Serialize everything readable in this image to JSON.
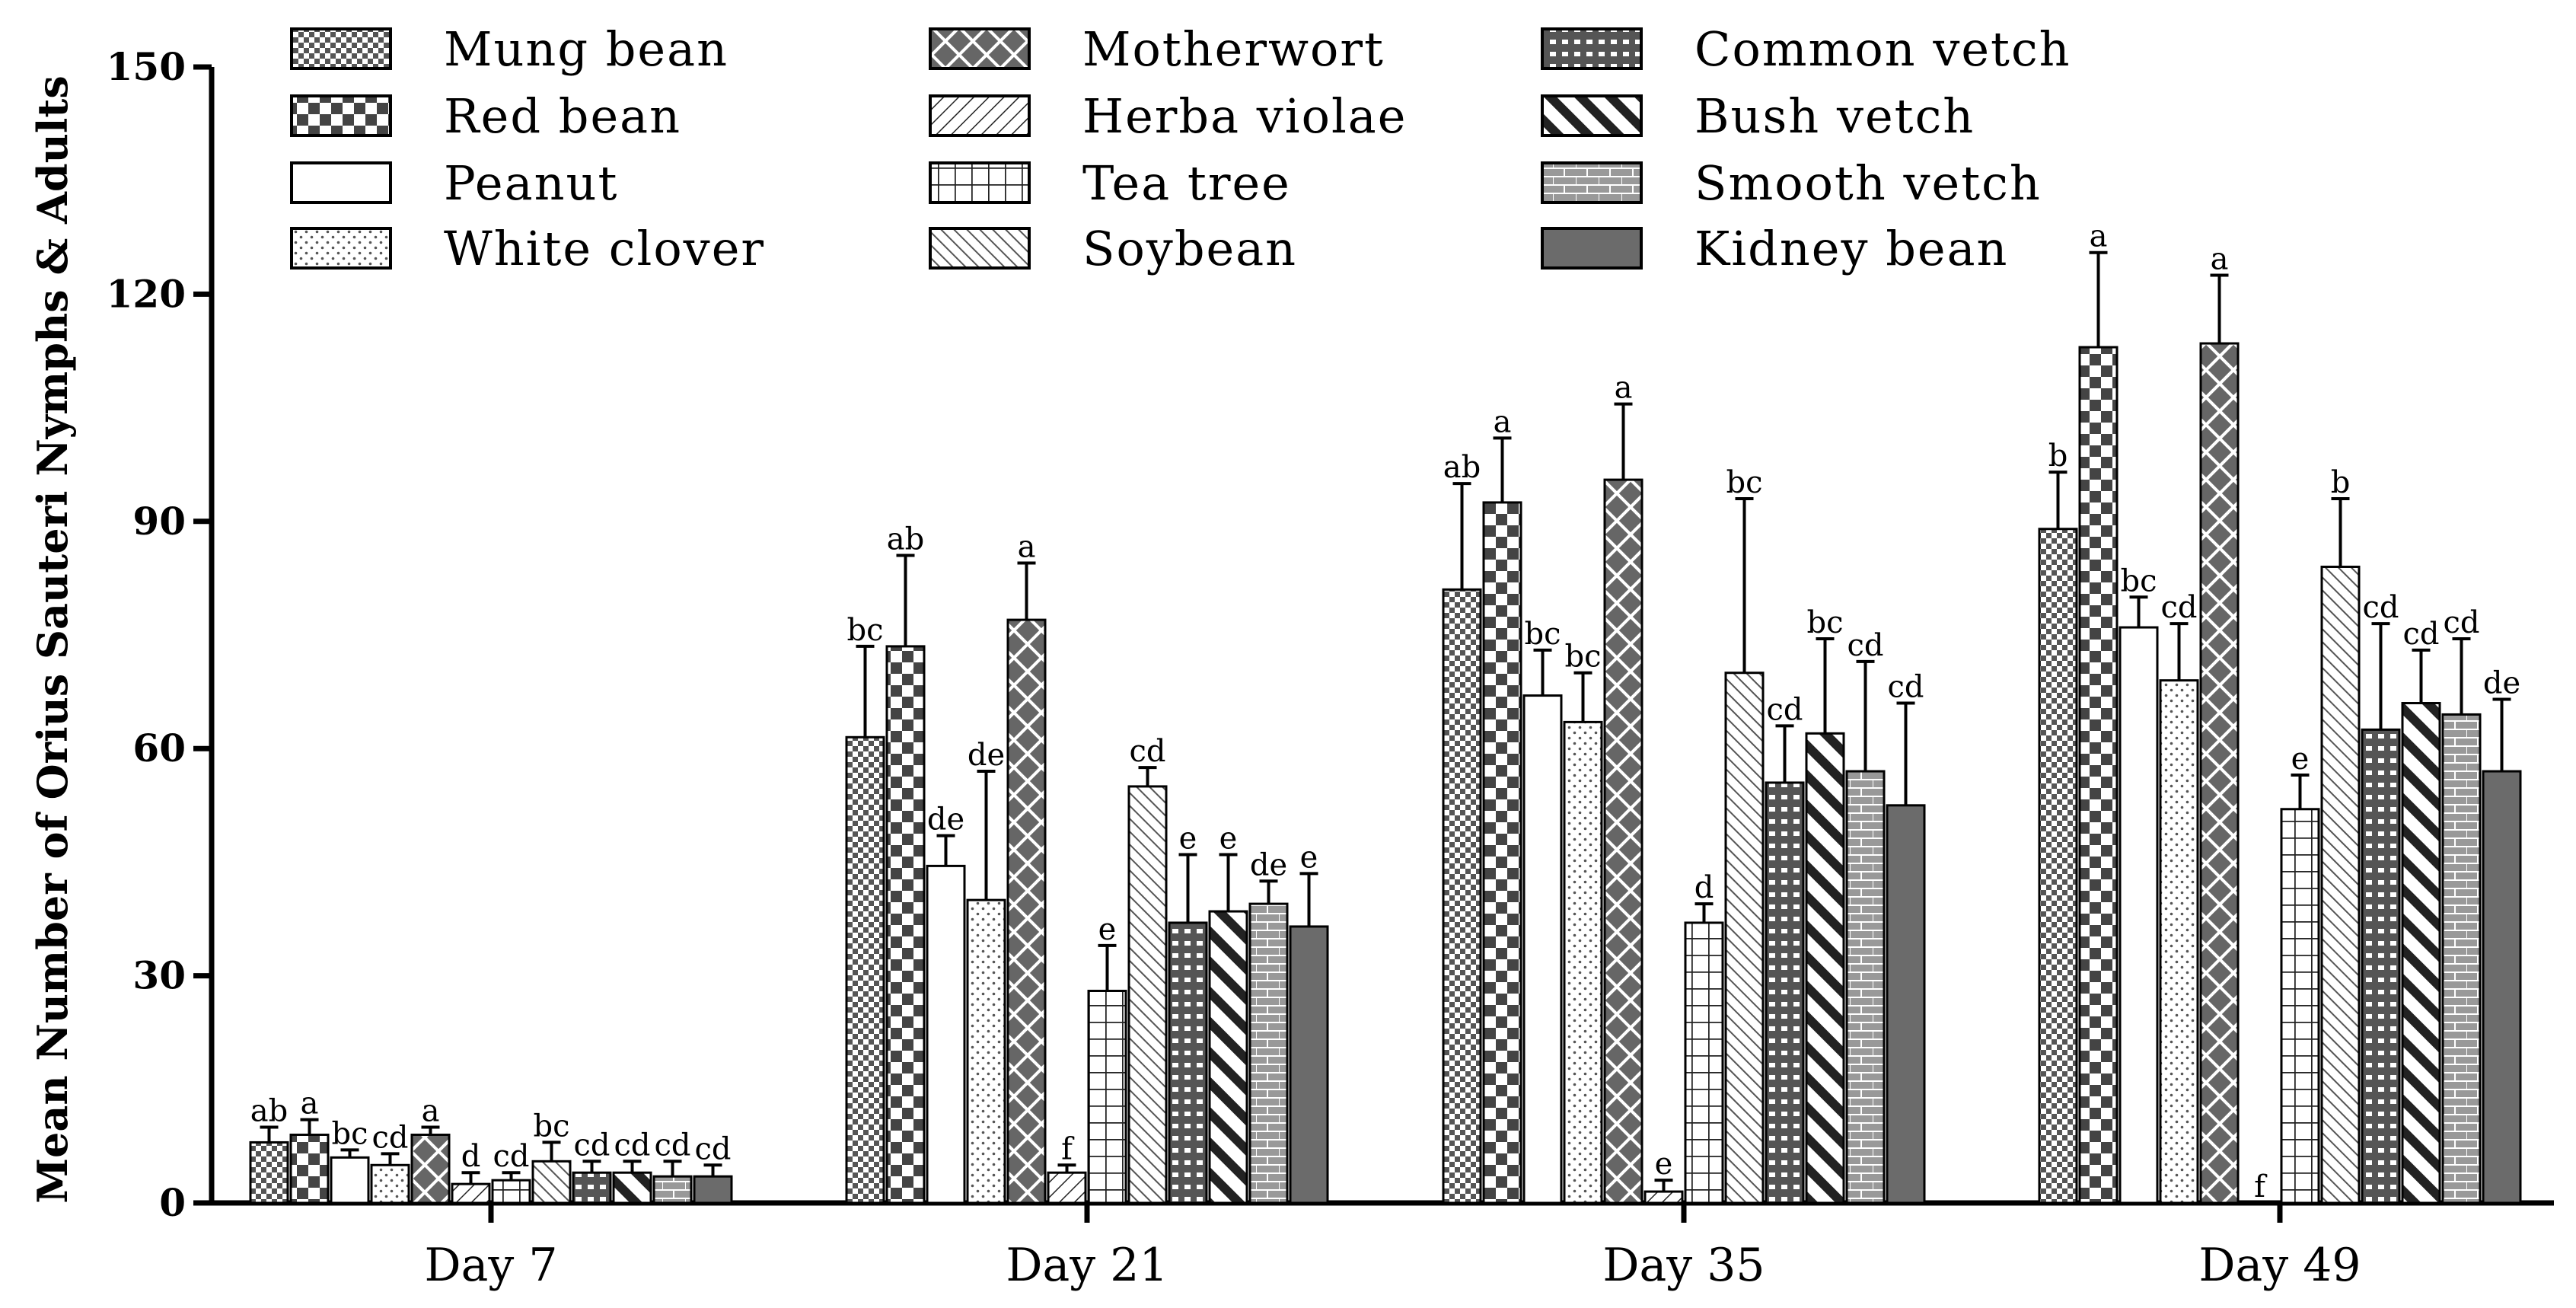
{
  "chart_data": {
    "type": "bar",
    "title": "",
    "xlabel": "",
    "ylabel": "Mean Number of Orius Sauteri Nymphs & Adults",
    "ylim": [
      0,
      150
    ],
    "yticks": [
      "0",
      "30",
      "60",
      "90",
      "120",
      "150"
    ],
    "categories": [
      "Day 7",
      "Day 21",
      "Day 35",
      "Day 49"
    ],
    "legend_position": "top",
    "series": [
      {
        "name": "Mung bean",
        "pattern": "fine-check",
        "values": [
          8,
          61.5,
          81,
          89
        ],
        "errors": [
          2,
          12,
          14,
          7.5
        ],
        "labels": [
          "ab",
          "bc",
          "ab",
          "b"
        ]
      },
      {
        "name": "Red bean",
        "pattern": "coarse-check",
        "values": [
          9,
          73.5,
          92.5,
          113
        ],
        "errors": [
          2,
          12,
          8.5,
          12.5
        ],
        "labels": [
          "a",
          "ab",
          "a",
          "a"
        ]
      },
      {
        "name": "Peanut",
        "pattern": "white",
        "values": [
          6,
          44.5,
          67,
          76
        ],
        "errors": [
          1,
          4,
          6,
          4
        ],
        "labels": [
          "bc",
          "de",
          "bc",
          "bc"
        ]
      },
      {
        "name": "White clover",
        "pattern": "dots",
        "values": [
          5,
          40,
          63.5,
          69
        ],
        "errors": [
          1.5,
          17,
          6.5,
          7.5
        ],
        "labels": [
          "cd",
          "de",
          "bc",
          "cd"
        ]
      },
      {
        "name": "Motherwort",
        "pattern": "big-x",
        "values": [
          9,
          77,
          95.5,
          113.5
        ],
        "errors": [
          1,
          7.5,
          10,
          9
        ],
        "labels": [
          "a",
          "a",
          "a",
          "a"
        ]
      },
      {
        "name": "Herba violae",
        "pattern": "back-diagonal",
        "values": [
          2.5,
          4,
          1.5,
          0
        ],
        "errors": [
          1.5,
          1,
          1.5,
          0
        ],
        "labels": [
          "d",
          "f",
          "e",
          "f"
        ]
      },
      {
        "name": "Tea tree",
        "pattern": "grid",
        "values": [
          3,
          28,
          37,
          52
        ],
        "errors": [
          1,
          6,
          2.5,
          4.5
        ],
        "labels": [
          "cd",
          "e",
          "d",
          "e"
        ]
      },
      {
        "name": "Soybean",
        "pattern": "hatch",
        "values": [
          5.5,
          55,
          70,
          84
        ],
        "errors": [
          2.5,
          2.5,
          23,
          9
        ],
        "labels": [
          "bc",
          "cd",
          "bc",
          "b"
        ]
      },
      {
        "name": "Common vetch",
        "pattern": "dashed-grid",
        "values": [
          4,
          37,
          55.5,
          62.5
        ],
        "errors": [
          1.5,
          9,
          7.5,
          14
        ],
        "labels": [
          "cd",
          "e",
          "cd",
          "cd"
        ]
      },
      {
        "name": "Bush vetch",
        "pattern": "thick-diagonal",
        "values": [
          4,
          38.5,
          62,
          66
        ],
        "errors": [
          1.5,
          7.5,
          12.5,
          7
        ],
        "labels": [
          "cd",
          "e",
          "bc",
          "cd"
        ]
      },
      {
        "name": "Smooth vetch",
        "pattern": "brick",
        "values": [
          3.5,
          39.5,
          57,
          64.5
        ],
        "errors": [
          2,
          3,
          14.5,
          10
        ],
        "labels": [
          "cd",
          "de",
          "cd",
          "cd"
        ]
      },
      {
        "name": "Kidney bean",
        "pattern": "solid-gray",
        "values": [
          3.5,
          36.5,
          52.5,
          57
        ],
        "errors": [
          1.5,
          7,
          13.5,
          9.5
        ],
        "labels": [
          "cd",
          "e",
          "cd",
          "de"
        ]
      }
    ]
  }
}
